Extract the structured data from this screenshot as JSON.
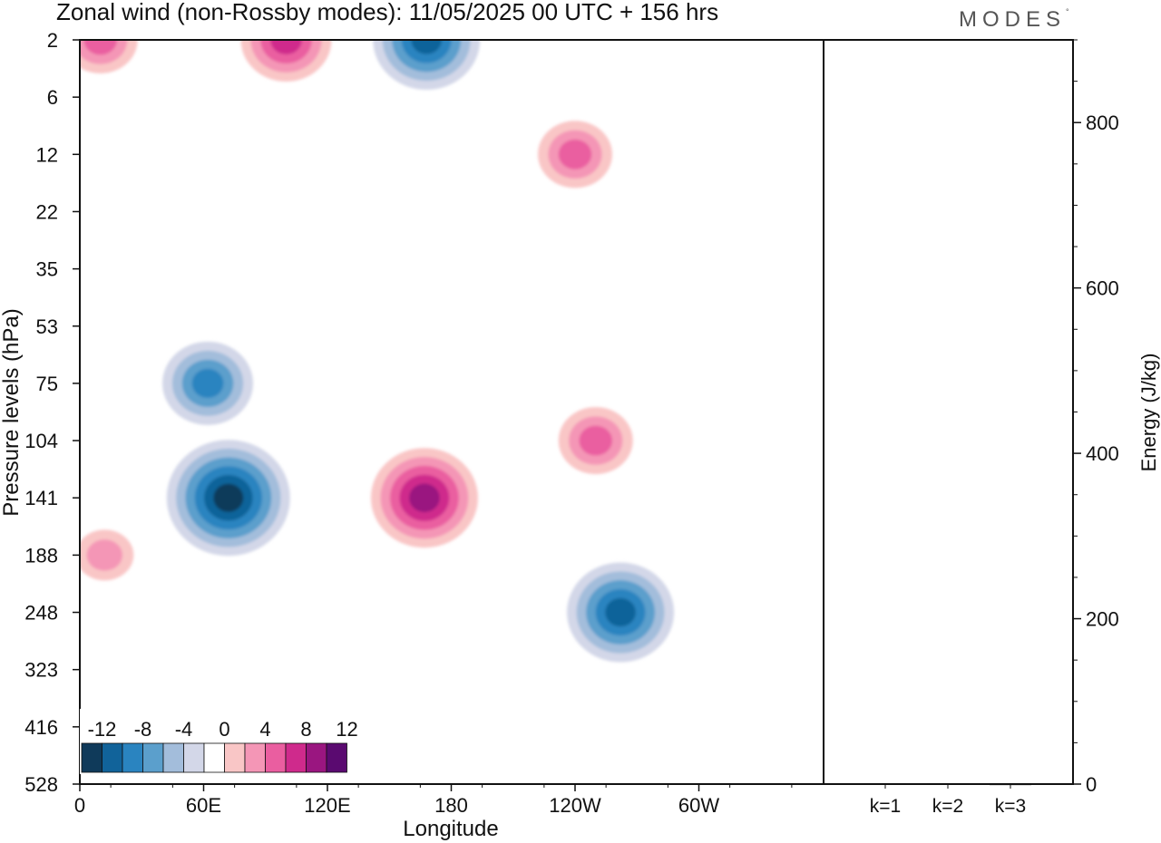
{
  "header": {
    "title": "Zonal wind (non-Rossby modes):  11/05/2025  00 UTC  + 156 hrs",
    "brand": "MODES",
    "brand_mark": "°"
  },
  "chart_data": [
    {
      "type": "heatmap",
      "title": "Zonal wind (non-Rossby modes):  11/05/2025  00 UTC  + 156 hrs",
      "xlabel": "Longitude",
      "ylabel": "Pressure levels (hPa)",
      "x_ticks": [
        "0",
        "60E",
        "120E",
        "180",
        "120W",
        "60W"
      ],
      "y_ticks": [
        "2",
        "6",
        "12",
        "22",
        "35",
        "53",
        "75",
        "104",
        "141",
        "188",
        "248",
        "323",
        "416",
        "528"
      ],
      "colorbar": {
        "tick_labels": [
          "-12",
          "-8",
          "-4",
          "0",
          "4",
          "8",
          "12"
        ],
        "levels": [
          -14,
          -12,
          -10,
          -8,
          -6,
          -4,
          -2,
          2,
          4,
          6,
          8,
          10,
          12,
          14
        ],
        "colors": [
          "#0f3a5a",
          "#11639a",
          "#2a84c0",
          "#5b9fcc",
          "#a3bddb",
          "#d3d7e8",
          "#ffffff",
          "#f9c6c6",
          "#f496b6",
          "#ea5ea0",
          "#cf2a8c",
          "#9a1680",
          "#5a0a70"
        ]
      },
      "features": [
        {
          "sign": "positive",
          "lon": 10,
          "level": "2",
          "peak": 6
        },
        {
          "sign": "positive",
          "lon": 100,
          "level": "2",
          "peak": 8
        },
        {
          "sign": "negative",
          "lon": 168,
          "level": "2",
          "peak": -9
        },
        {
          "sign": "positive",
          "lon": 240,
          "level": "12",
          "peak": 6
        },
        {
          "sign": "negative",
          "lon": 72,
          "level": "141",
          "peak": -14
        },
        {
          "sign": "negative",
          "lon": 62,
          "level": "75",
          "peak": -7
        },
        {
          "sign": "positive",
          "lon": 167,
          "level": "141",
          "peak": 11
        },
        {
          "sign": "negative",
          "lon": 262,
          "level": "248",
          "peak": -9
        },
        {
          "sign": "positive",
          "lon": 250,
          "level": "104",
          "peak": 6
        },
        {
          "sign": "positive",
          "lon": 12,
          "level": "188",
          "peak": 3
        }
      ]
    },
    {
      "type": "bar",
      "categories": [
        "k=1",
        "k=2",
        "k=3"
      ],
      "values": [
        1.0,
        0.7,
        0.4
      ],
      "ylabel": "Energy (J/kg)",
      "ylim": [
        0,
        900
      ],
      "y_ticks": [
        "0",
        "200",
        "400",
        "600",
        "800"
      ]
    }
  ]
}
